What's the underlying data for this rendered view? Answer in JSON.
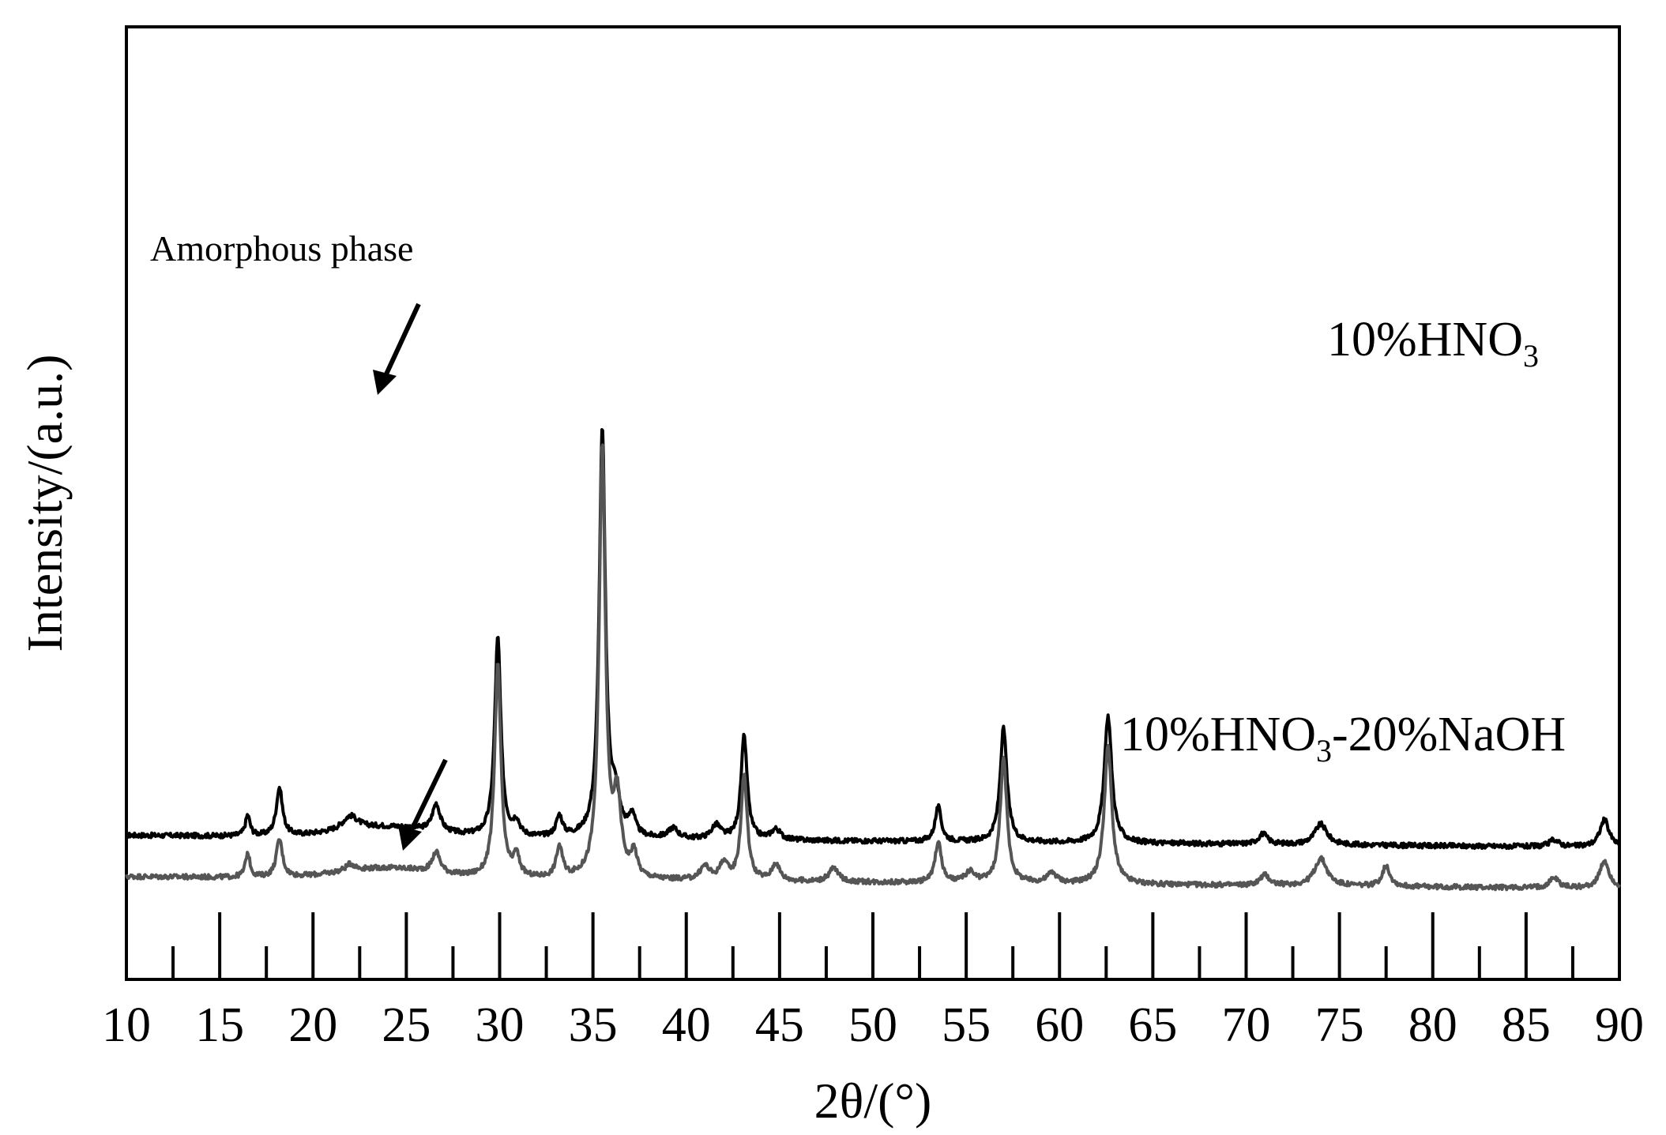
{
  "chart_data": {
    "type": "line",
    "xlabel": "2θ/(°)",
    "ylabel": "Intensity/(a.u.)",
    "xlim": [
      10,
      90
    ],
    "x_ticks_major": [
      10,
      15,
      20,
      25,
      30,
      35,
      40,
      45,
      50,
      55,
      60,
      65,
      70,
      75,
      80,
      85,
      90
    ],
    "x_tick_labels": [
      "10",
      "15",
      "20",
      "25",
      "30",
      "35",
      "40",
      "45",
      "50",
      "55",
      "60",
      "65",
      "70",
      "75",
      "80",
      "85",
      "90"
    ],
    "y_tick_labels": "none",
    "grid": false,
    "legend": "none; series labeled inline at right",
    "annotations": [
      {
        "text": "Amorphous phase",
        "arrow_to_x": 23.5,
        "series": "10%HNO3"
      },
      {
        "text": "",
        "arrow_to_x": 25,
        "series": "10%HNO3-20%NaOH"
      }
    ],
    "series": [
      {
        "name": "10%HNO3",
        "label_main": "10%HNO",
        "label_sub": "3",
        "color": "#000000",
        "baseline": 12,
        "peaks": [
          {
            "x": 16.5,
            "h": 6,
            "w": 0.15
          },
          {
            "x": 18.2,
            "h": 14,
            "w": 0.2
          },
          {
            "x": 22.0,
            "h": 4,
            "w": 0.5
          },
          {
            "x": 26.6,
            "h": 8,
            "w": 0.25
          },
          {
            "x": 29.9,
            "h": 58,
            "w": 0.2
          },
          {
            "x": 30.9,
            "h": 4,
            "w": 0.2
          },
          {
            "x": 33.2,
            "h": 6,
            "w": 0.2
          },
          {
            "x": 35.5,
            "h": 118,
            "w": 0.2
          },
          {
            "x": 36.2,
            "h": 10,
            "w": 0.3
          },
          {
            "x": 37.1,
            "h": 6,
            "w": 0.2
          },
          {
            "x": 39.3,
            "h": 3,
            "w": 0.3
          },
          {
            "x": 41.6,
            "h": 4,
            "w": 0.3
          },
          {
            "x": 43.1,
            "h": 30,
            "w": 0.2
          },
          {
            "x": 44.8,
            "h": 3,
            "w": 0.3
          },
          {
            "x": 53.5,
            "h": 10,
            "w": 0.2
          },
          {
            "x": 57.0,
            "h": 33,
            "w": 0.22
          },
          {
            "x": 62.6,
            "h": 37,
            "w": 0.24
          },
          {
            "x": 70.9,
            "h": 3,
            "w": 0.3
          },
          {
            "x": 74.0,
            "h": 6,
            "w": 0.4
          },
          {
            "x": 86.5,
            "h": 2,
            "w": 0.3
          },
          {
            "x": 89.2,
            "h": 8,
            "w": 0.3
          }
        ]
      },
      {
        "name": "10%HNO3-20%NaOH",
        "label_main": "10%HNO",
        "label_sub": "3",
        "label_tail": "-20%NaOH",
        "color": "#555555",
        "baseline": 0,
        "peaks": [
          {
            "x": 16.5,
            "h": 7,
            "w": 0.15
          },
          {
            "x": 18.2,
            "h": 11,
            "w": 0.2
          },
          {
            "x": 22.0,
            "h": 2,
            "w": 0.3
          },
          {
            "x": 26.6,
            "h": 6,
            "w": 0.25
          },
          {
            "x": 29.9,
            "h": 62,
            "w": 0.2
          },
          {
            "x": 30.9,
            "h": 6,
            "w": 0.2
          },
          {
            "x": 33.2,
            "h": 9,
            "w": 0.2
          },
          {
            "x": 35.5,
            "h": 125,
            "w": 0.2
          },
          {
            "x": 36.3,
            "h": 22,
            "w": 0.25
          },
          {
            "x": 37.2,
            "h": 7,
            "w": 0.2
          },
          {
            "x": 41.0,
            "h": 4,
            "w": 0.3
          },
          {
            "x": 42.0,
            "h": 5,
            "w": 0.25
          },
          {
            "x": 43.1,
            "h": 31,
            "w": 0.2
          },
          {
            "x": 44.8,
            "h": 5,
            "w": 0.25
          },
          {
            "x": 47.9,
            "h": 4,
            "w": 0.3
          },
          {
            "x": 53.5,
            "h": 12,
            "w": 0.2
          },
          {
            "x": 55.2,
            "h": 3,
            "w": 0.3
          },
          {
            "x": 57.0,
            "h": 36,
            "w": 0.22
          },
          {
            "x": 59.6,
            "h": 3,
            "w": 0.3
          },
          {
            "x": 62.6,
            "h": 40,
            "w": 0.24
          },
          {
            "x": 71.0,
            "h": 3,
            "w": 0.3
          },
          {
            "x": 74.0,
            "h": 8,
            "w": 0.4
          },
          {
            "x": 77.5,
            "h": 6,
            "w": 0.25
          },
          {
            "x": 86.5,
            "h": 3,
            "w": 0.3
          },
          {
            "x": 89.2,
            "h": 8,
            "w": 0.3
          }
        ]
      }
    ]
  }
}
